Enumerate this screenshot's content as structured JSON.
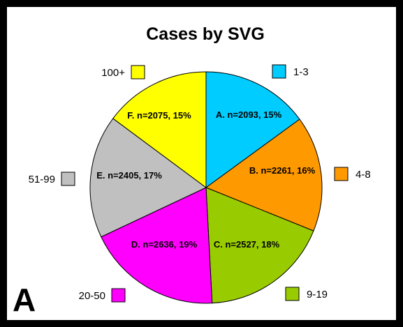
{
  "chart_data": {
    "type": "pie",
    "title": "Cases by SVG",
    "panel_label": "A",
    "slices": [
      {
        "category": "1-3",
        "label": "A. n=2093, 15%",
        "value": 2093,
        "percent": 15,
        "color": "#00ccff"
      },
      {
        "category": "4-8",
        "label": "B. n=2261, 16%",
        "value": 2261,
        "percent": 16,
        "color": "#ff9900"
      },
      {
        "category": "9-19",
        "label": "C. n=2527, 18%",
        "value": 2527,
        "percent": 18,
        "color": "#99cc00"
      },
      {
        "category": "20-50",
        "label": "D. n=2636, 19%",
        "value": 2636,
        "percent": 19,
        "color": "#ff00ff"
      },
      {
        "category": "51-99",
        "label": "E. n=2405, 17%",
        "value": 2405,
        "percent": 17,
        "color": "#c0c0c0"
      },
      {
        "category": "100+",
        "label": "F. n=2075, 15%",
        "value": 2075,
        "percent": 15,
        "color": "#ffff00"
      }
    ]
  }
}
